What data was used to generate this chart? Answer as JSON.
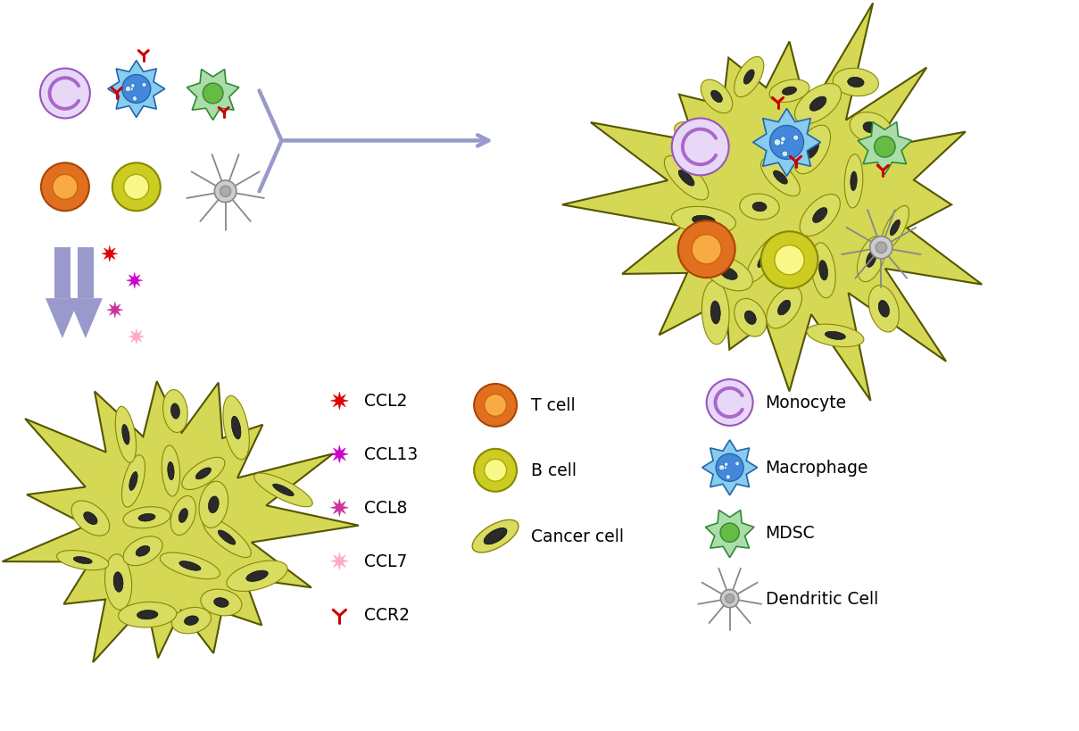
{
  "bg_color": "#ffffff",
  "arrow_color": "#9999cc",
  "figure_size": [
    12.09,
    8.2
  ],
  "dpi": 100,
  "tumor_yellow_outer": "#b8b830",
  "tumor_yellow_fill": "#d4d855",
  "cancer_cell_fill": "#d8dc60",
  "cancer_cell_edge": "#888800",
  "nucleus_fill": "#2a2a2a",
  "nucleus_edge": "#000000",
  "monocyte_fill": "#e8d8f8",
  "monocyte_ring": "#aa66cc",
  "tcell_outer": "#e07020",
  "tcell_inner": "#f8aa44",
  "bcell_outer": "#cccc22",
  "bcell_inner": "#f8f888",
  "macro_body": "#88ccee",
  "macro_inner": "#4488dd",
  "macro_edge": "#2266aa",
  "mdsc_body": "#aaddaa",
  "mdsc_inner": "#66bb44",
  "mdsc_edge": "#338833",
  "dendritic_body": "#cccccc",
  "dendritic_edge": "#888888",
  "ccl_colors": [
    "#dd0000",
    "#cc00cc",
    "#cc3399",
    "#ffaacc"
  ],
  "ccr2_color": "#cc0000",
  "barrier_color": "#9999cc",
  "legend_ccl": [
    "CCL2",
    "CCL13",
    "CCL8",
    "CCL7",
    "CCR2"
  ],
  "legend_ccl_colors": [
    "#dd0000",
    "#cc00cc",
    "#cc3399",
    "#ffaacc",
    "#cc0000"
  ],
  "legend_right": [
    "Monocyte",
    "Macrophage",
    "MDSC",
    "Dendritic Cell"
  ]
}
